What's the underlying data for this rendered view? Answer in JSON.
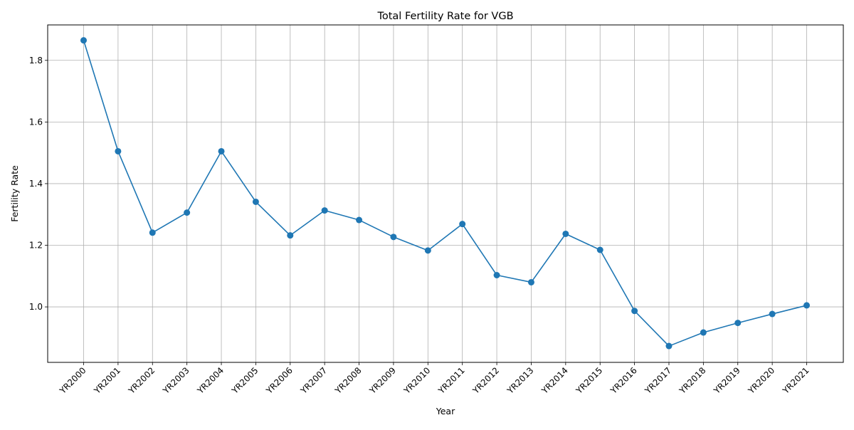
{
  "chart_data": {
    "type": "line",
    "title": "Total Fertility Rate for VGB",
    "xlabel": "Year",
    "ylabel": "Fertility Rate",
    "categories": [
      "YR2000",
      "YR2001",
      "YR2002",
      "YR2003",
      "YR2004",
      "YR2005",
      "YR2006",
      "YR2007",
      "YR2008",
      "YR2009",
      "YR2010",
      "YR2011",
      "YR2012",
      "YR2013",
      "YR2014",
      "YR2015",
      "YR2016",
      "YR2017",
      "YR2018",
      "YR2019",
      "YR2020",
      "YR2021"
    ],
    "series": [
      {
        "values": [
          1.865,
          1.505,
          1.241,
          1.306,
          1.505,
          1.341,
          1.232,
          1.313,
          1.282,
          1.227,
          1.183,
          1.269,
          1.103,
          1.08,
          1.237,
          1.185,
          0.987,
          0.873,
          0.917,
          0.948,
          0.977,
          1.005
        ],
        "color": "#1f77b4",
        "marker": "circle"
      }
    ],
    "ylim": [
      0.82,
      1.915
    ],
    "yticks": [
      "1.0",
      "1.2",
      "1.4",
      "1.6",
      "1.8"
    ],
    "grid": true,
    "legend": "none",
    "xtick_rotation": 45
  }
}
